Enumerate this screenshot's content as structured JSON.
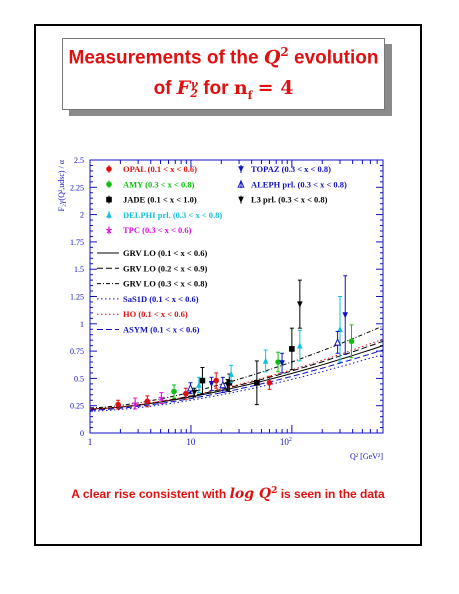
{
  "title": {
    "line1_text": "Measurements of the",
    "line1_var": "Q",
    "line1_exp": "2",
    "line1_tail": "evolution",
    "line2_of": "of",
    "line2_var": "F",
    "line2_sub": "2",
    "line2_sup": "γ",
    "line2_for": "for",
    "line2_nf": "n",
    "line2_nf_sub": "f",
    "line2_eq": "= 4"
  },
  "footer": {
    "pre": "A clear rise consistent with",
    "math": "log Q",
    "math_exp": "2",
    "post": "is seen in the data"
  },
  "colors": {
    "accent": "#e01010",
    "axis": "#1010c0",
    "OPAL": "#e01010",
    "AMY": "#10c010",
    "JADE": "#000000",
    "DELPHI": "#10c0e0",
    "TPC": "#e010e0",
    "TOPAZ": "#1010c0",
    "ALEPH": "#1010c0",
    "L3": "#000000"
  },
  "chart_data": {
    "type": "scatter",
    "x_scale": "log",
    "xlim": [
      1,
      800
    ],
    "ylim": [
      0,
      2.5
    ],
    "xlabel": "Q² [GeV²]",
    "ylabel": "F₂γ(Q²,udsc) / α",
    "x_ticks": [
      "1",
      "10",
      "10²"
    ],
    "y_ticks": [
      "0",
      "0.25",
      "0.5",
      "0.75",
      "1",
      "1.25",
      "1.5",
      "1.75",
      "2",
      "2.25",
      "2.5"
    ],
    "series": [
      {
        "name": "OPAL (0.1 < x < 0.6)",
        "marker": "circle",
        "color": "#e01010",
        "points": [
          [
            1.9,
            0.26,
            0.04
          ],
          [
            3.7,
            0.29,
            0.05
          ],
          [
            8.9,
            0.36,
            0.05
          ],
          [
            17.8,
            0.48,
            0.07
          ],
          [
            60,
            0.46,
            0.06
          ]
        ]
      },
      {
        "name": "AMY (0.3 < x < 0.8)",
        "marker": "circle",
        "color": "#10c010",
        "points": [
          [
            6.8,
            0.38,
            0.06
          ],
          [
            73,
            0.65,
            0.09
          ],
          [
            390,
            0.84,
            0.15
          ]
        ]
      },
      {
        "name": "JADE (0.1 < x < 1.0)",
        "marker": "square",
        "color": "#000000",
        "points": [
          [
            13,
            0.48,
            0.12
          ],
          [
            24,
            0.46,
            0.08
          ],
          [
            45,
            0.46,
            0.2
          ],
          [
            100,
            0.77,
            0.19
          ]
        ]
      },
      {
        "name": "DELPHI prl. (0.3 < x < 0.8)",
        "marker": "triangle",
        "color": "#10c0e0",
        "points": [
          [
            12,
            0.44,
            0.07
          ],
          [
            25,
            0.54,
            0.08
          ],
          [
            55,
            0.66,
            0.1
          ],
          [
            120,
            0.8,
            0.14
          ],
          [
            300,
            0.95,
            0.3
          ]
        ]
      },
      {
        "name": "TPC (0.3 < x < 0.6)",
        "marker": "star",
        "color": "#e010e0",
        "points": [
          [
            2.8,
            0.27,
            0.05
          ],
          [
            5.1,
            0.32,
            0.05
          ]
        ]
      },
      {
        "name": "TOPAZ (0.3 < x < 0.8)",
        "marker": "triangle-down",
        "color": "#1010c0",
        "points": [
          [
            16,
            0.45,
            0.06
          ],
          [
            80,
            0.64,
            0.09
          ],
          [
            338,
            1.08,
            0.36
          ]
        ]
      },
      {
        "name": "ALEPH prl. (0.3 < x < 0.8)",
        "marker": "triangle-open",
        "color": "#1010c0",
        "points": [
          [
            9.9,
            0.41,
            0.05
          ],
          [
            20.7,
            0.44,
            0.07
          ],
          [
            284,
            0.83,
            0.1
          ]
        ]
      },
      {
        "name": "L3 prl. (0.3 < x < 0.8)",
        "marker": "triangle-down",
        "color": "#000000",
        "points": [
          [
            10.8,
            0.37,
            0.04
          ],
          [
            23.1,
            0.44,
            0.05
          ],
          [
            120,
            1.18,
            0.22
          ]
        ]
      }
    ],
    "curves": [
      {
        "name": "GRV LO (0.1 < x < 0.6)",
        "style": "solid",
        "color": "#000000",
        "x": [
          1,
          800
        ],
        "y": [
          0.22,
          0.8
        ]
      },
      {
        "name": "GRV LO (0.2 < x < 0.9)",
        "style": "dashed",
        "color": "#000000",
        "x": [
          1,
          800
        ],
        "y": [
          0.22,
          0.84
        ]
      },
      {
        "name": "GRV LO (0.3 < x < 0.8)",
        "style": "dotdash",
        "color": "#000000",
        "x": [
          1,
          800
        ],
        "y": [
          0.23,
          0.98
        ]
      },
      {
        "name": "SaS1D (0.1 < x < 0.6)",
        "style": "dotted",
        "color": "#1010c0",
        "x": [
          1,
          800
        ],
        "y": [
          0.2,
          0.72
        ]
      },
      {
        "name": "HO (0.1 < x < 0.6)",
        "style": "dotted",
        "color": "#e01010",
        "x": [
          1,
          800
        ],
        "y": [
          0.22,
          0.86
        ]
      },
      {
        "name": "ASYM (0.1 < x < 0.6)",
        "style": "dashed",
        "color": "#1010c0",
        "x": [
          1,
          800
        ],
        "y": [
          0.21,
          0.76
        ]
      }
    ]
  }
}
